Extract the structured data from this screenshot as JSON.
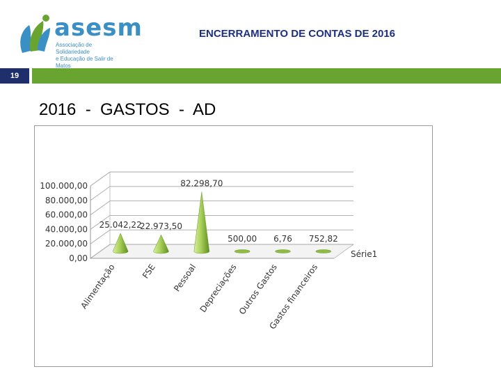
{
  "header": {
    "logo_name": "asesm",
    "logo_line1": "Associação de Solidariedade",
    "logo_line2": "e Educação de Salir de Matos",
    "title": "ENCERRAMENTO DE CONTAS DE 2016"
  },
  "slide": {
    "page_number": "19",
    "title": "2016  -  GASTOS  -  AD"
  },
  "colors": {
    "header_title": "#1c2f86",
    "page_badge": "#1e2f6b",
    "green_bar": "#6aa430",
    "logo": "#3a8fc4",
    "cone": "#9cc84a"
  },
  "chart_data": {
    "type": "bar",
    "categories": [
      "Alimentação",
      "FSE",
      "Pessoal",
      "Depreciações",
      "Outros Gastos",
      "Gastos financeiros"
    ],
    "series": [
      {
        "name": "Série1",
        "values": [
          25042.22,
          22973.5,
          82298.7,
          500.0,
          6.76,
          752.82
        ]
      }
    ],
    "data_labels": [
      "25.042,22",
      "22.973,50",
      "82.298,70",
      "500,00",
      "6,76",
      "752,82"
    ],
    "yticks": [
      "0,00",
      "20.000,00",
      "40.000,00",
      "60.000,00",
      "80.000,00",
      "100.000,00"
    ],
    "ylim": [
      0,
      100000
    ],
    "title": "",
    "xlabel": "",
    "ylabel": "",
    "grid": true,
    "legend": "right"
  }
}
